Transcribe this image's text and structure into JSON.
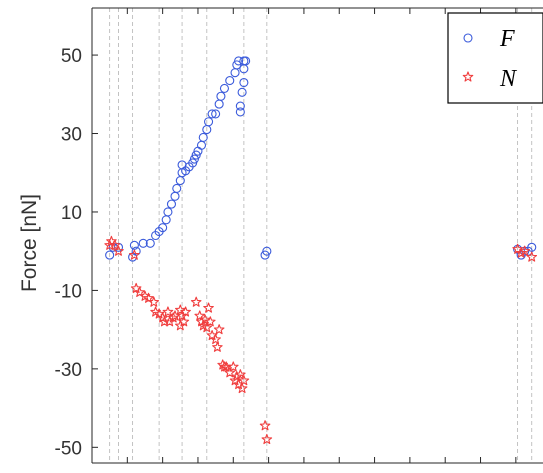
{
  "chart_data": {
    "type": "scatter",
    "title": "",
    "xlabel": "",
    "ylabel": "Force [nN]",
    "xlim": [
      0,
      26.5
    ],
    "ylim": [
      -54,
      62
    ],
    "yticks": [
      50,
      30,
      10,
      -10,
      -30,
      -50
    ],
    "ytick_labels": [
      "50",
      "30",
      "10",
      "-10",
      "-30",
      "-50"
    ],
    "xticks": [
      2,
      4,
      6,
      8,
      10,
      12,
      14,
      16,
      18,
      20,
      22,
      24,
      26
    ],
    "legend": {
      "position": "top-right",
      "visible": true
    },
    "grid": false,
    "vlines": [
      1.0,
      1.5,
      2.3,
      3.8,
      5.1,
      6.5,
      8.6,
      9.9,
      24.1,
      24.9
    ],
    "series": [
      {
        "name": "F",
        "marker": "circle",
        "color": "#3b5bdb",
        "x": [
          1.0,
          1.2,
          1.5,
          2.3,
          2.5,
          2.4,
          2.9,
          3.3,
          3.6,
          3.8,
          4.0,
          4.2,
          4.3,
          4.5,
          4.7,
          4.8,
          5.0,
          5.1,
          5.1,
          5.3,
          5.5,
          5.7,
          5.8,
          5.9,
          6.0,
          6.2,
          6.3,
          6.5,
          6.6,
          6.8,
          7.0,
          7.2,
          7.3,
          7.5,
          7.8,
          8.1,
          8.2,
          8.3,
          8.4,
          8.4,
          8.5,
          8.6,
          8.6,
          8.6,
          8.7,
          9.8,
          9.9,
          24.1,
          24.3,
          24.5,
          24.7,
          24.9
        ],
        "y": [
          -1,
          1,
          1,
          -1.5,
          0,
          1.5,
          2,
          2,
          4,
          5,
          6,
          8,
          10,
          12,
          14,
          16,
          18,
          20,
          22,
          20.5,
          21.5,
          22.5,
          23.5,
          24.5,
          25.5,
          27,
          29,
          31,
          33,
          35,
          35,
          37.5,
          39.5,
          41.5,
          43.5,
          45.5,
          47.5,
          48.5,
          35.5,
          37,
          40.5,
          43,
          48.5,
          46.5,
          48.5,
          -1,
          0,
          0.5,
          -1,
          0,
          0,
          1
        ]
      },
      {
        "name": "N",
        "marker": "star",
        "color": "#f03e3e",
        "x": [
          1.0,
          1.1,
          1.3,
          1.5,
          2.4,
          2.5,
          2.7,
          3.0,
          3.2,
          3.5,
          3.6,
          3.8,
          4.0,
          4.1,
          4.3,
          4.4,
          4.6,
          4.7,
          5.0,
          5.1,
          5.2,
          5.0,
          5.3,
          5.9,
          6.1,
          6.2,
          6.3,
          6.4,
          6.5,
          6.6,
          6.7,
          6.8,
          7.0,
          7.1,
          7.2,
          7.4,
          7.5,
          7.6,
          7.8,
          8.0,
          8.1,
          8.2,
          8.3,
          8.4,
          8.5,
          8.6,
          9.8,
          9.9,
          24.1,
          24.3,
          24.5,
          24.9
        ],
        "y": [
          1.5,
          2.5,
          1.5,
          0,
          -1,
          -9.5,
          -10.5,
          -11.5,
          -12,
          -13,
          -15.5,
          -16,
          -17,
          -18,
          -15.5,
          -18,
          -17,
          -16.5,
          -15,
          -16.5,
          -18,
          -19,
          -15.5,
          -13,
          -16.5,
          -18,
          -19,
          -17.5,
          -19.5,
          -14.5,
          -18,
          -21.5,
          -22.5,
          -24.5,
          -20,
          -29,
          -29.5,
          -29.5,
          -31,
          -29.5,
          -33,
          -32,
          -34,
          -31.5,
          -35,
          -33,
          -44.5,
          -48,
          0.5,
          -0.5,
          0,
          -1.5
        ]
      }
    ]
  }
}
